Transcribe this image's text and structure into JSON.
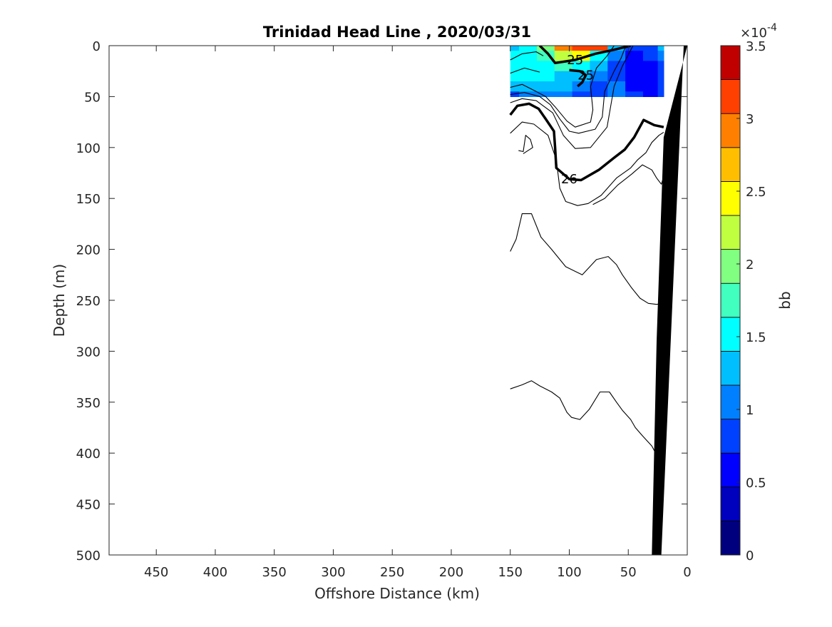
{
  "chart_data": {
    "type": "heatmap",
    "title": "Trinidad Head Line , 2020/03/31",
    "xlabel": "Offshore Distance (km)",
    "ylabel": "Depth (m)",
    "xlim": [
      490,
      0
    ],
    "ylim": [
      0,
      500
    ],
    "x_reversed": true,
    "y_reversed": true,
    "x_ticks": [
      450,
      400,
      350,
      300,
      250,
      200,
      150,
      100,
      50,
      0
    ],
    "y_ticks": [
      0,
      50,
      100,
      150,
      200,
      250,
      300,
      350,
      400,
      450,
      500
    ],
    "grid": false,
    "colorbar": {
      "label": "bb",
      "exponent_label": "×10",
      "exponent_power": "-4",
      "min": 0,
      "max": 3.5,
      "ticks": [
        "0",
        "0.5",
        "1",
        "1.5",
        "2",
        "2.5",
        "3",
        "3.5"
      ],
      "tick_values": [
        0,
        0.5,
        1,
        1.5,
        2,
        2.5,
        3,
        3.5
      ],
      "levels": 14,
      "colors": [
        "#00007F",
        "#0000BF",
        "#0000FF",
        "#0040FF",
        "#0080FF",
        "#00BFFF",
        "#00FFFF",
        "#40FFBF",
        "#80FF80",
        "#BFFF40",
        "#FFFF00",
        "#FFBF00",
        "#FF8000",
        "#FF4000",
        "#C00000"
      ]
    },
    "field": {
      "x": [
        150,
        135,
        120,
        105,
        90,
        75,
        60,
        45,
        30,
        20
      ],
      "depth": [
        0,
        10,
        20,
        30,
        40,
        50
      ],
      "values": [
        [
          1.4,
          1.5,
          2.0,
          3.0,
          3.2,
          3.1,
          1.4,
          0.8,
          0.9,
          1.2
        ],
        [
          1.5,
          1.6,
          1.7,
          2.1,
          2.4,
          1.6,
          1.0,
          0.7,
          0.8,
          1.0
        ],
        [
          1.6,
          1.6,
          1.6,
          1.7,
          1.6,
          1.2,
          0.9,
          0.6,
          0.7,
          0.9
        ],
        [
          1.5,
          1.5,
          1.5,
          1.4,
          1.3,
          1.0,
          0.9,
          0.6,
          0.6,
          0.8
        ],
        [
          1.2,
          1.3,
          1.4,
          1.2,
          1.0,
          0.9,
          1.0,
          0.7,
          0.7,
          0.8
        ],
        [
          0.9,
          1.0,
          1.1,
          1.0,
          0.9,
          0.9,
          1.0,
          0.8,
          0.7,
          0.8
        ]
      ]
    },
    "contours": [
      {
        "level": "25",
        "bold": true,
        "label": "25",
        "points": [
          [
            125,
            0
          ],
          [
            118,
            8
          ],
          [
            112,
            17
          ],
          [
            95,
            14
          ],
          [
            78,
            8
          ],
          [
            62,
            4
          ],
          [
            48,
            0
          ]
        ]
      },
      {
        "level": "25",
        "bold": true,
        "label": "25",
        "points": [
          [
            100,
            24
          ],
          [
            91,
            25
          ],
          [
            86,
            29
          ],
          [
            89,
            36
          ],
          [
            93,
            40
          ]
        ]
      },
      {
        "level": "26",
        "bold": true,
        "label": "26",
        "points": [
          [
            150,
            68
          ],
          [
            144,
            59
          ],
          [
            134,
            57
          ],
          [
            126,
            62
          ],
          [
            120,
            72
          ],
          [
            113,
            84
          ],
          [
            112,
            100
          ],
          [
            111,
            120
          ],
          [
            100,
            131
          ],
          [
            90,
            132
          ],
          [
            75,
            122
          ],
          [
            62,
            110
          ],
          [
            53,
            102
          ],
          [
            45,
            90
          ],
          [
            37,
            73
          ],
          [
            28,
            78
          ],
          [
            20,
            80
          ]
        ]
      },
      {
        "level": "",
        "bold": false,
        "label": "",
        "points": [
          [
            150,
            14
          ],
          [
            140,
            8
          ],
          [
            128,
            6
          ],
          [
            122,
            10
          ]
        ]
      },
      {
        "level": "",
        "bold": false,
        "label": "",
        "points": [
          [
            150,
            27
          ],
          [
            138,
            22
          ],
          [
            125,
            26
          ]
        ]
      },
      {
        "level": "",
        "bold": false,
        "label": "",
        "points": [
          [
            150,
            41
          ],
          [
            140,
            38
          ],
          [
            128,
            45
          ],
          [
            120,
            50
          ],
          [
            112,
            60
          ],
          [
            102,
            74
          ],
          [
            95,
            80
          ],
          [
            82,
            75
          ],
          [
            80,
            63
          ],
          [
            82,
            40
          ],
          [
            77,
            22
          ],
          [
            68,
            10
          ],
          [
            62,
            0
          ]
        ]
      },
      {
        "level": "",
        "bold": false,
        "label": "",
        "points": [
          [
            150,
            48
          ],
          [
            138,
            46
          ],
          [
            125,
            50
          ],
          [
            116,
            58
          ],
          [
            108,
            72
          ],
          [
            100,
            84
          ],
          [
            92,
            86
          ],
          [
            78,
            82
          ],
          [
            72,
            70
          ],
          [
            70,
            45
          ],
          [
            62,
            25
          ],
          [
            56,
            12
          ],
          [
            52,
            0
          ]
        ]
      },
      {
        "level": "",
        "bold": false,
        "label": "",
        "points": [
          [
            150,
            56
          ],
          [
            140,
            52
          ],
          [
            128,
            54
          ],
          [
            114,
            66
          ],
          [
            105,
            88
          ],
          [
            95,
            101
          ],
          [
            82,
            100
          ],
          [
            68,
            80
          ],
          [
            62,
            40
          ],
          [
            55,
            20
          ],
          [
            46,
            0
          ]
        ]
      },
      {
        "level": "",
        "bold": false,
        "label": "",
        "points": [
          [
            150,
            86
          ],
          [
            140,
            75
          ],
          [
            130,
            77
          ],
          [
            118,
            88
          ],
          [
            111,
            112
          ],
          [
            108,
            140
          ],
          [
            103,
            153
          ],
          [
            93,
            157
          ],
          [
            84,
            155
          ],
          [
            73,
            147
          ],
          [
            60,
            130
          ],
          [
            48,
            120
          ],
          [
            42,
            112
          ],
          [
            35,
            105
          ],
          [
            30,
            95
          ],
          [
            24,
            88
          ],
          [
            20,
            85
          ]
        ]
      },
      {
        "level": "",
        "bold": false,
        "label": "",
        "points": [
          [
            143,
            103
          ],
          [
            139,
            104
          ],
          [
            137,
            88
          ],
          [
            133,
            92
          ],
          [
            131,
            100
          ],
          [
            139,
            106
          ]
        ]
      },
      {
        "level": "",
        "bold": false,
        "label": "",
        "points": [
          [
            80,
            156
          ],
          [
            70,
            150
          ],
          [
            59,
            137
          ],
          [
            47,
            126
          ],
          [
            38,
            117
          ],
          [
            30,
            122
          ],
          [
            26,
            130
          ],
          [
            22,
            136
          ],
          [
            20,
            129
          ]
        ]
      },
      {
        "level": "",
        "bold": false,
        "label": "",
        "points": [
          [
            150,
            202
          ],
          [
            145,
            190
          ],
          [
            140,
            165
          ],
          [
            132,
            165
          ],
          [
            124,
            188
          ],
          [
            115,
            200
          ],
          [
            103,
            217
          ],
          [
            89,
            225
          ],
          [
            77,
            210
          ],
          [
            67,
            207
          ],
          [
            60,
            215
          ],
          [
            55,
            225
          ],
          [
            47,
            238
          ],
          [
            40,
            248
          ],
          [
            33,
            253
          ],
          [
            26,
            254
          ],
          [
            20,
            253
          ]
        ]
      },
      {
        "level": "",
        "bold": false,
        "label": "",
        "points": [
          [
            150,
            337
          ],
          [
            140,
            333
          ],
          [
            132,
            329
          ],
          [
            125,
            334
          ],
          [
            115,
            340
          ],
          [
            108,
            346
          ],
          [
            102,
            360
          ],
          [
            98,
            365
          ],
          [
            91,
            367
          ],
          [
            83,
            357
          ],
          [
            74,
            340
          ],
          [
            66,
            340
          ],
          [
            60,
            350
          ],
          [
            55,
            358
          ],
          [
            48,
            367
          ],
          [
            44,
            375
          ],
          [
            38,
            383
          ],
          [
            30,
            393
          ],
          [
            25,
            404
          ],
          [
            23,
            405
          ]
        ]
      }
    ],
    "bathymetry": {
      "fill": "#000000",
      "points": [
        [
          0,
          0
        ],
        [
          20,
          90
        ],
        [
          26,
          290
        ],
        [
          30,
          500
        ],
        [
          31,
          500
        ],
        [
          22,
          500
        ],
        [
          3,
          0
        ]
      ]
    }
  }
}
